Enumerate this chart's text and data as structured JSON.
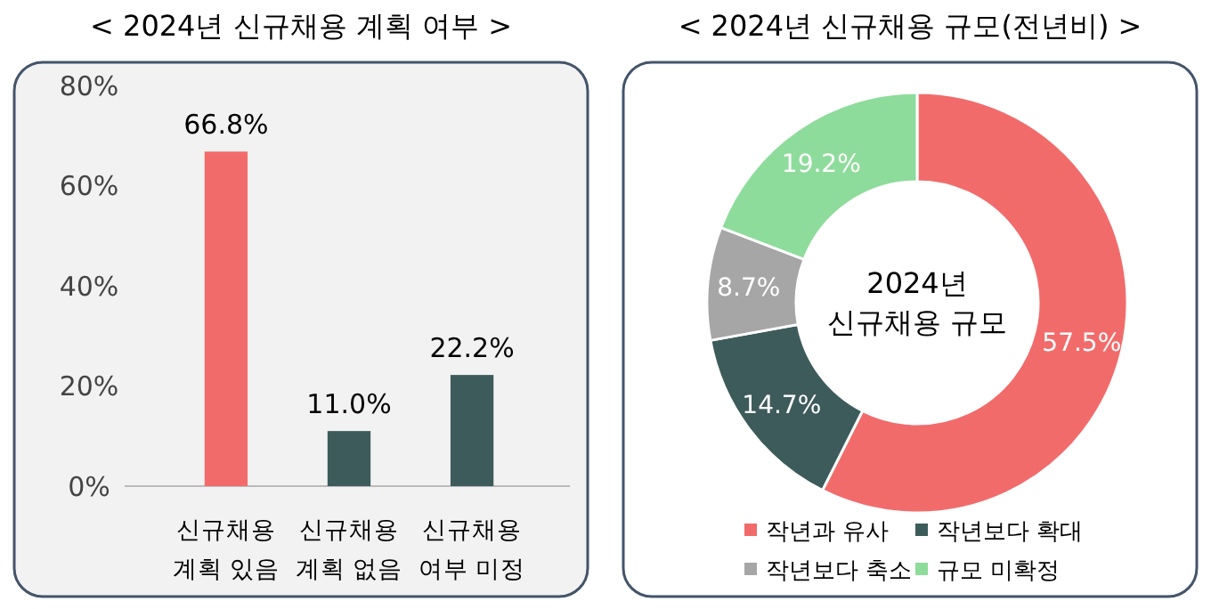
{
  "chart_data": [
    {
      "type": "bar",
      "title": "< 2024년 신규채용 계획 여부 >",
      "categories": [
        "신규채용\n계획 있음",
        "신규채용\n계획 없음",
        "신규채용\n여부 미정"
      ],
      "values": [
        66.8,
        11.0,
        22.2
      ],
      "colors": [
        "#f26b6b",
        "#3e5b5b",
        "#3e5b5b"
      ],
      "value_labels": [
        "66.8%",
        "11.0%",
        "22.2%"
      ],
      "ylim": [
        0,
        80
      ],
      "yticks": [
        {
          "value": 0,
          "label": "0%"
        },
        {
          "value": 20,
          "label": "20%"
        },
        {
          "value": 40,
          "label": "40%"
        },
        {
          "value": 60,
          "label": "60%"
        },
        {
          "value": 80,
          "label": "80%"
        }
      ],
      "grid": false
    },
    {
      "type": "donut",
      "title": "< 2024년 신규채용 규모(전년비) >",
      "categories": [
        "작년과 유사",
        "작년보다 확대",
        "작년보다 축소",
        "규모 미확정"
      ],
      "values": [
        57.5,
        14.7,
        8.7,
        19.2
      ],
      "colors": [
        "#f26b6b",
        "#3e5b5b",
        "#a6a6a6",
        "#8edc9b"
      ],
      "value_labels": [
        "57.5%",
        "14.7%",
        "8.7%",
        "19.2%"
      ],
      "annotations": [
        "2024년\n신규채용 규모"
      ],
      "legend": "bottom"
    }
  ]
}
